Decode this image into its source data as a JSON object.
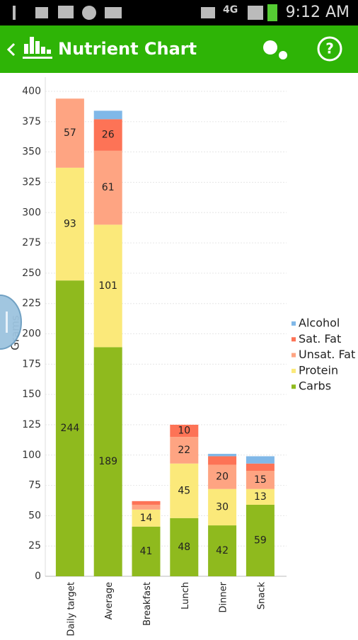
{
  "status_bar": {
    "network": "4G",
    "time": "9:12 AM"
  },
  "app_bar": {
    "title": "Nutrient Chart"
  },
  "chart_data": {
    "type": "stacked_bar",
    "ylabel": "Grams",
    "categories": [
      "Daily target",
      "Average",
      "Breakfast",
      "Lunch",
      "Dinner",
      "Snack"
    ],
    "series": [
      {
        "name": "Carbs",
        "color": "#8fba1e",
        "values": [
          244,
          189,
          41,
          48,
          42,
          59
        ]
      },
      {
        "name": "Protein",
        "color": "#fbe97a",
        "values": [
          93,
          101,
          14,
          45,
          30,
          13
        ]
      },
      {
        "name": "Unsat. Fat",
        "color": "#fea482",
        "values": [
          57,
          61,
          4,
          22,
          20,
          15
        ]
      },
      {
        "name": "Sat. Fat",
        "color": "#fd7356",
        "values": [
          0,
          26,
          3,
          10,
          7,
          6
        ]
      },
      {
        "name": "Alcohol",
        "color": "#80b8e8",
        "values": [
          0,
          7,
          0,
          0,
          2,
          6
        ]
      }
    ],
    "ylim": [
      0,
      400
    ],
    "yticks": [
      0,
      25,
      50,
      75,
      100,
      125,
      150,
      175,
      200,
      225,
      250,
      275,
      300,
      325,
      350,
      375,
      400
    ],
    "grid": true,
    "legend": "right"
  }
}
